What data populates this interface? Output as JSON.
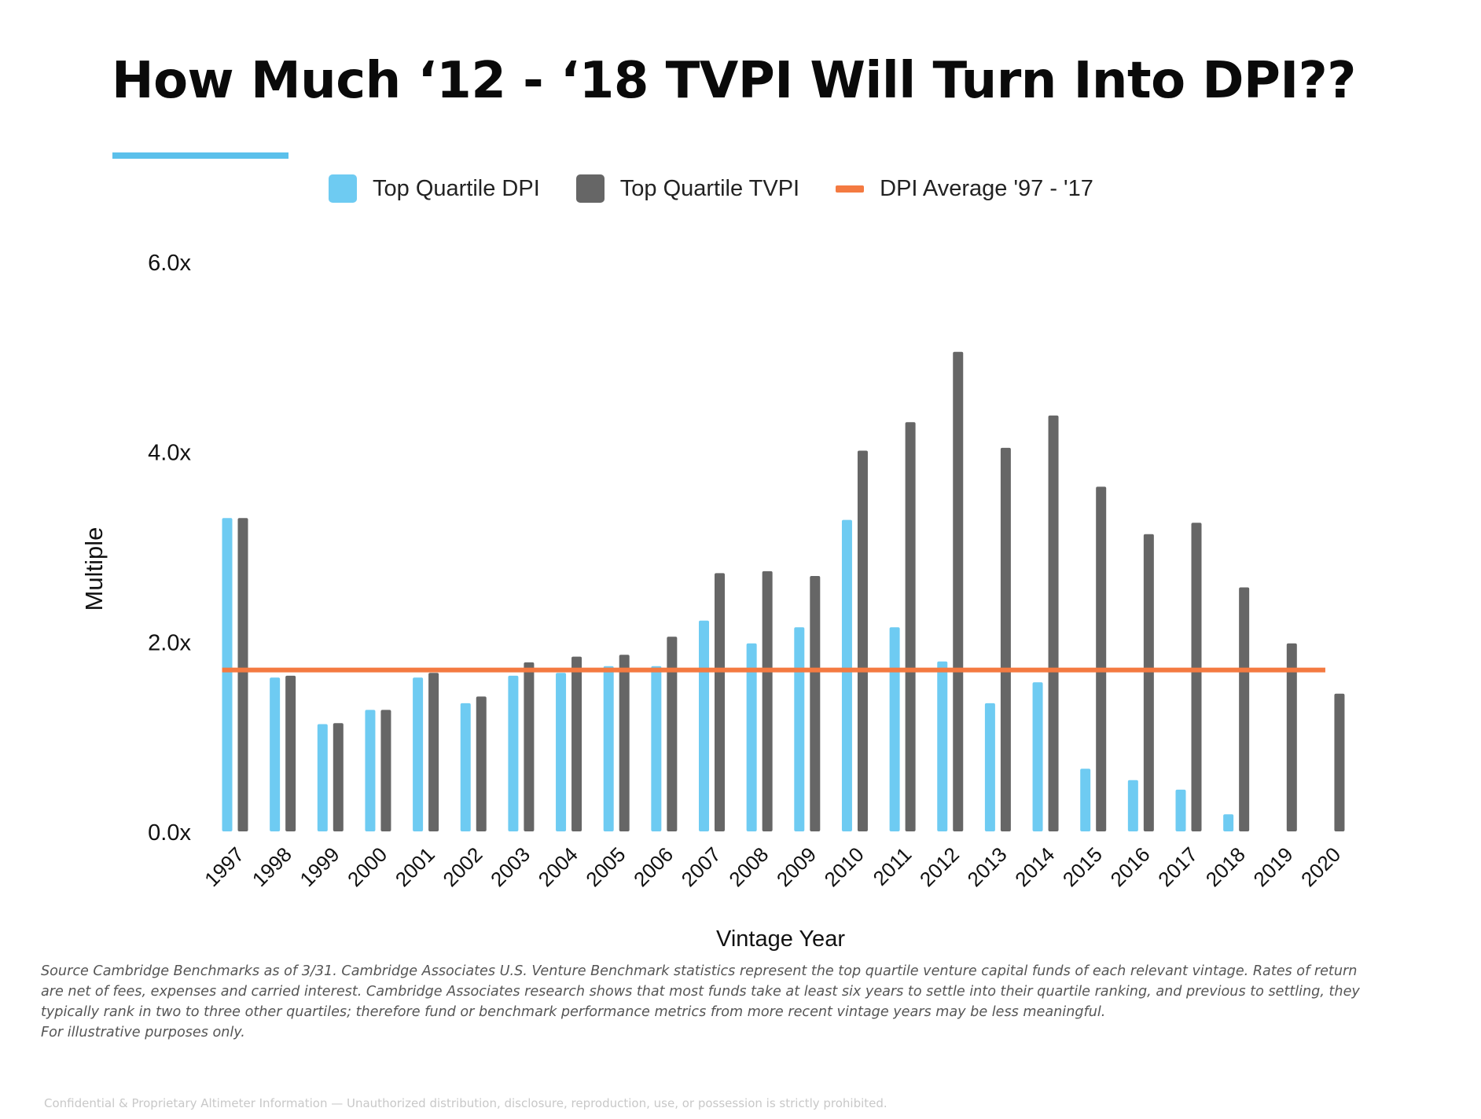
{
  "title": "How Much ‘12 - ‘18 TVPI Will Turn Into DPI??",
  "legend": {
    "dpi": "Top Quartile DPI",
    "tvpi": "Top Quartile TVPI",
    "avg": "DPI Average '97 - '17"
  },
  "colors": {
    "dpi": "#6ecbf2",
    "tvpi": "#666666",
    "avg": "#f47a41",
    "accent_rule": "#5bc0eb"
  },
  "chart_data": {
    "type": "bar",
    "title": "",
    "xlabel": "Vintage Year",
    "ylabel": "Multiple",
    "ylim": [
      0,
      6
    ],
    "yticks": [
      0,
      2,
      4,
      6
    ],
    "ytick_labels": [
      "0.0x",
      "2.0x",
      "4.0x",
      "6.0x"
    ],
    "categories": [
      "1997",
      "1998",
      "1999",
      "2000",
      "2001",
      "2002",
      "2003",
      "2004",
      "2005",
      "2006",
      "2007",
      "2008",
      "2009",
      "2010",
      "2011",
      "2012",
      "2013",
      "2014",
      "2015",
      "2016",
      "2017",
      "2018",
      "2019",
      "2020"
    ],
    "series": [
      {
        "name": "Top Quartile DPI",
        "values": [
          3.3,
          1.62,
          1.13,
          1.28,
          1.62,
          1.35,
          1.64,
          1.67,
          1.74,
          1.74,
          2.22,
          1.98,
          2.15,
          3.28,
          2.15,
          1.79,
          1.35,
          1.57,
          0.66,
          0.54,
          0.44,
          0.18,
          null,
          null
        ]
      },
      {
        "name": "Top Quartile TVPI",
        "values": [
          3.3,
          1.64,
          1.14,
          1.28,
          1.67,
          1.42,
          1.78,
          1.84,
          1.86,
          2.05,
          2.72,
          2.74,
          2.69,
          4.01,
          4.31,
          5.05,
          4.04,
          4.38,
          3.63,
          3.13,
          3.25,
          2.57,
          1.98,
          1.45
        ]
      }
    ],
    "reference_line": {
      "name": "DPI Average '97 - '17",
      "value": 1.7,
      "from": "1997",
      "to": "2020"
    }
  },
  "source_lines": [
    "Source Cambridge Benchmarks as of 3/31.  Cambridge Associates U.S. Venture Benchmark statistics represent the top quartile venture capital funds of each relevant vintage. Rates of return",
    "are net of fees, expenses and carried interest. Cambridge Associates research shows that  most funds take at  least six years to settle into their quartile ranking, and previous to settling, they",
    "typically rank in two to three other quartiles; therefore fund or benchmark performance metrics from more recent vintage years may be less meaningful.",
    "For illustrative purposes only."
  ],
  "footer": "Confidential & Proprietary Altimeter Information — Unauthorized distribution, disclosure, reproduction, use, or possession is strictly prohibited."
}
